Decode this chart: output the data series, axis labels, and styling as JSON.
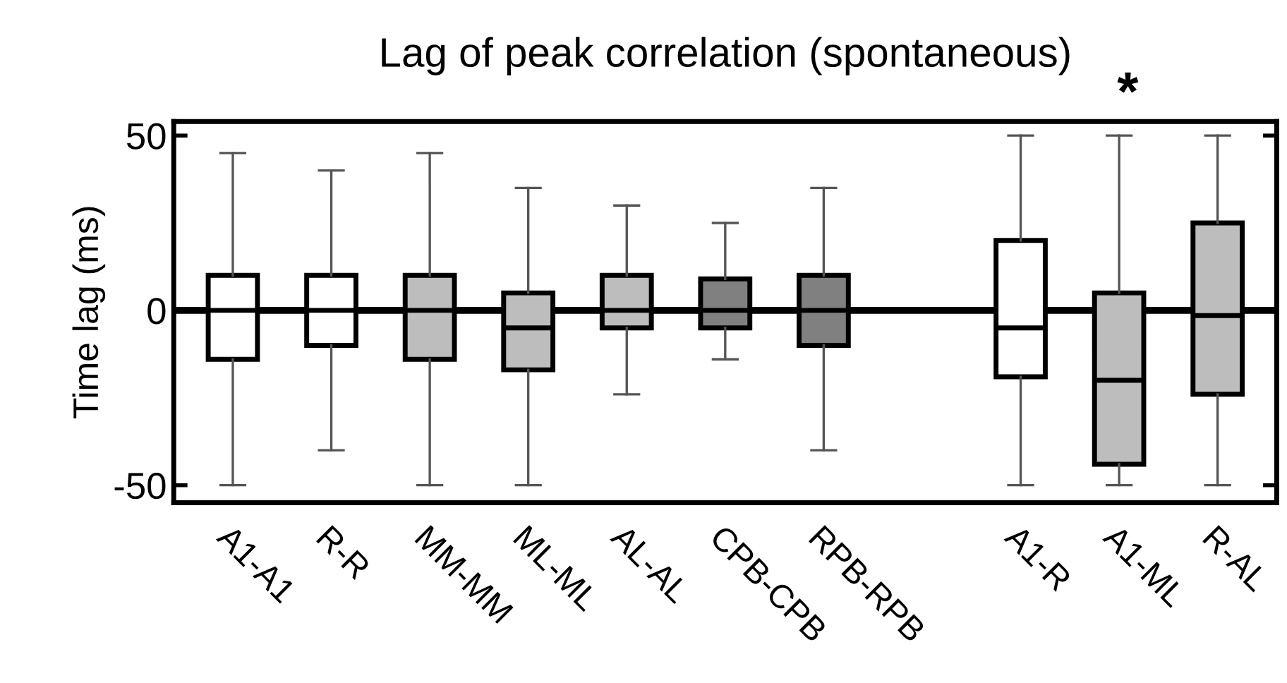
{
  "chart_data": {
    "type": "box",
    "title": "Lag of peak correlation (spontaneous)",
    "ylabel": "Time lag (ms)",
    "categories": [
      "A1-A1",
      "R-R",
      "MM-MM",
      "ML-ML",
      "AL-AL",
      "CPB-CPB",
      "RPB-RPB",
      null,
      "A1-R",
      "A1-ML",
      "R-AL"
    ],
    "colors": [
      "#ffffff",
      "#ffffff",
      "#bdbdbd",
      "#bdbdbd",
      "#bdbdbd",
      "#808080",
      "#808080",
      null,
      "#ffffff",
      "#bdbdbd",
      "#bdbdbd"
    ],
    "boxes": [
      {
        "low": -50,
        "q1": -14,
        "median": 0,
        "q3": 10,
        "high": 45
      },
      {
        "low": -40,
        "q1": -10,
        "median": 0,
        "q3": 10,
        "high": 40
      },
      {
        "low": -50,
        "q1": -14,
        "median": 0,
        "q3": 10,
        "high": 45
      },
      {
        "low": -50,
        "q1": -17,
        "median": -5,
        "q3": 5,
        "high": 35
      },
      {
        "low": -24,
        "q1": -5,
        "median": 0,
        "q3": 10,
        "high": 30
      },
      {
        "low": -14,
        "q1": -5,
        "median": 0,
        "q3": 9,
        "high": 25
      },
      {
        "low": -40,
        "q1": -10,
        "median": 0,
        "q3": 10,
        "high": 35
      },
      null,
      {
        "low": -50,
        "q1": -19,
        "median": -5,
        "q3": 20,
        "high": 50
      },
      {
        "low": -50,
        "q1": -44,
        "median": -20,
        "q3": 5,
        "high": 50
      },
      {
        "low": -50,
        "q1": -24,
        "median": -1.5,
        "q3": 25,
        "high": 50
      }
    ],
    "ylim": [
      -55,
      54
    ],
    "yticks": [
      {
        "value": -50,
        "label": "-50"
      },
      0,
      50
    ],
    "ref_lines": [
      {
        "axis": "y",
        "value": 0,
        "color": "#000000"
      }
    ],
    "annotations": [
      "*"
    ],
    "grid": false,
    "legend": false
  }
}
